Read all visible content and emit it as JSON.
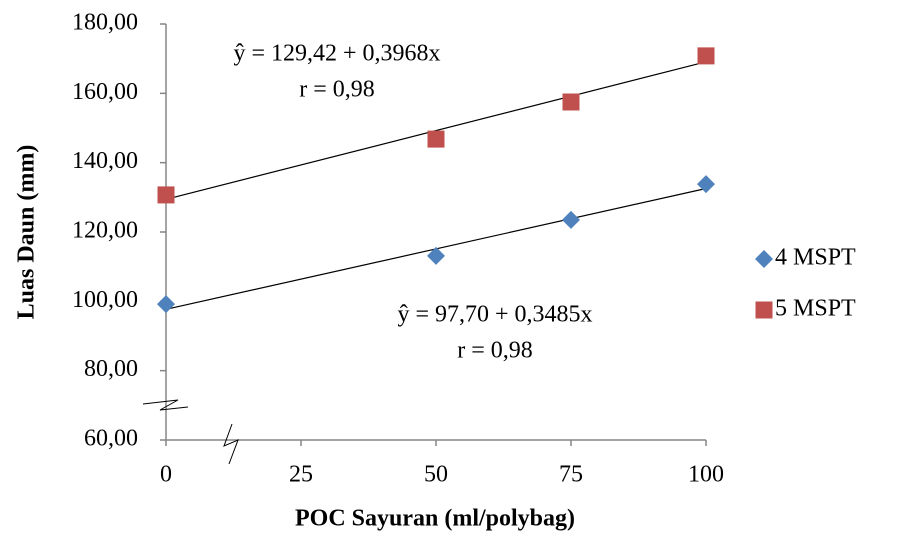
{
  "chart_data": {
    "type": "scatter",
    "xlabel": "POC Sayuran (ml/polybag)",
    "ylabel": "Luas Daun (mm)",
    "x": [
      0,
      50,
      75,
      100
    ],
    "xlim": [
      0,
      100
    ],
    "xticks": [
      0,
      25,
      50,
      75,
      100
    ],
    "ylim": [
      60,
      180
    ],
    "yticks": [
      {
        "value": 60,
        "label": "60,00"
      },
      {
        "value": 80,
        "label": "80,00"
      },
      {
        "value": 100,
        "label": "100,00"
      },
      {
        "value": 120,
        "label": "120,00"
      },
      {
        "value": 140,
        "label": "140,00"
      },
      {
        "value": 160,
        "label": "160,00"
      },
      {
        "value": 180,
        "label": "180,00"
      }
    ],
    "grid": false,
    "legend": "right",
    "series": [
      {
        "name": "4 MSPT",
        "color": "#4f81bd",
        "marker": "diamond",
        "values": [
          99.2,
          113.1,
          123.5,
          133.8
        ],
        "trendline": {
          "intercept": 97.7,
          "slope": 0.3485,
          "equation": "ŷ = 97,70 + 0,3485x",
          "r": "r = 0,98"
        }
      },
      {
        "name": "5 MSPT",
        "color": "#c0504d",
        "marker": "square",
        "values": [
          130.7,
          146.8,
          157.5,
          170.8
        ],
        "trendline": {
          "intercept": 129.42,
          "slope": 0.3968,
          "equation": "ŷ = 129,42 + 0,3968x",
          "r": "r = 0,98"
        }
      }
    ]
  }
}
